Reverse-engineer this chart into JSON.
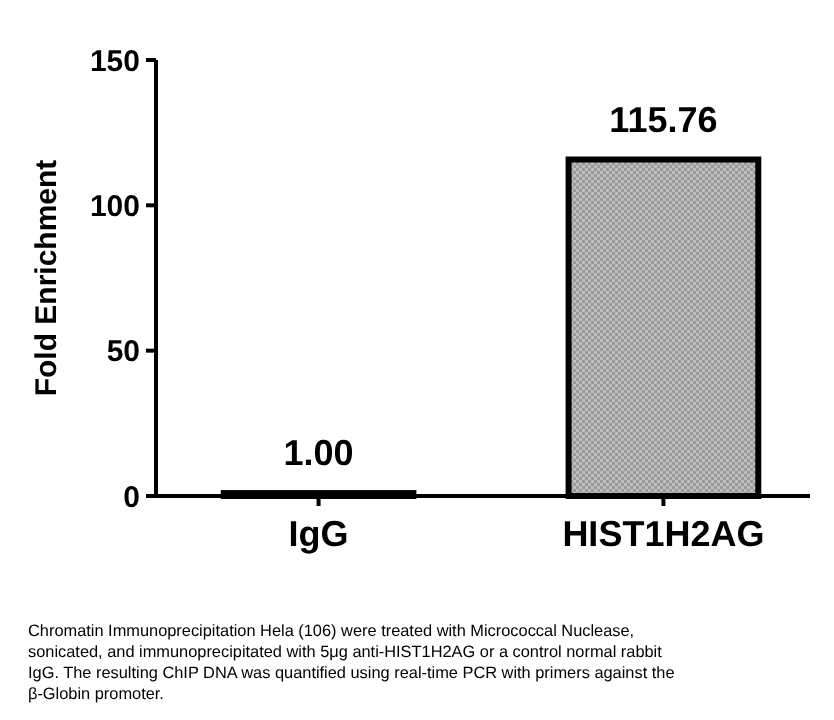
{
  "chart_data": {
    "type": "bar",
    "ylabel": "Fold Enrichment",
    "categories": [
      "IgG",
      "HIST1H2AG"
    ],
    "values": [
      1.0,
      115.76
    ],
    "colors": [
      "#000000",
      "#9a9a9a"
    ],
    "ylim": [
      0,
      150
    ],
    "yticks": [
      0,
      50,
      100,
      150
    ],
    "data_labels": true,
    "value_labels": [
      "1.00",
      "115.76"
    ],
    "annotations": [
      "Chromatin Immunoprecipitation Hela (106) were treated with Micrococcal Nuclease, sonicated, and immunoprecipitated with 5μg anti-HIST1H2AG or a control normal rabbit IgG. The resulting ChIP DNA was quantified using real-time PCR with primers against the β-Globin promoter."
    ]
  }
}
